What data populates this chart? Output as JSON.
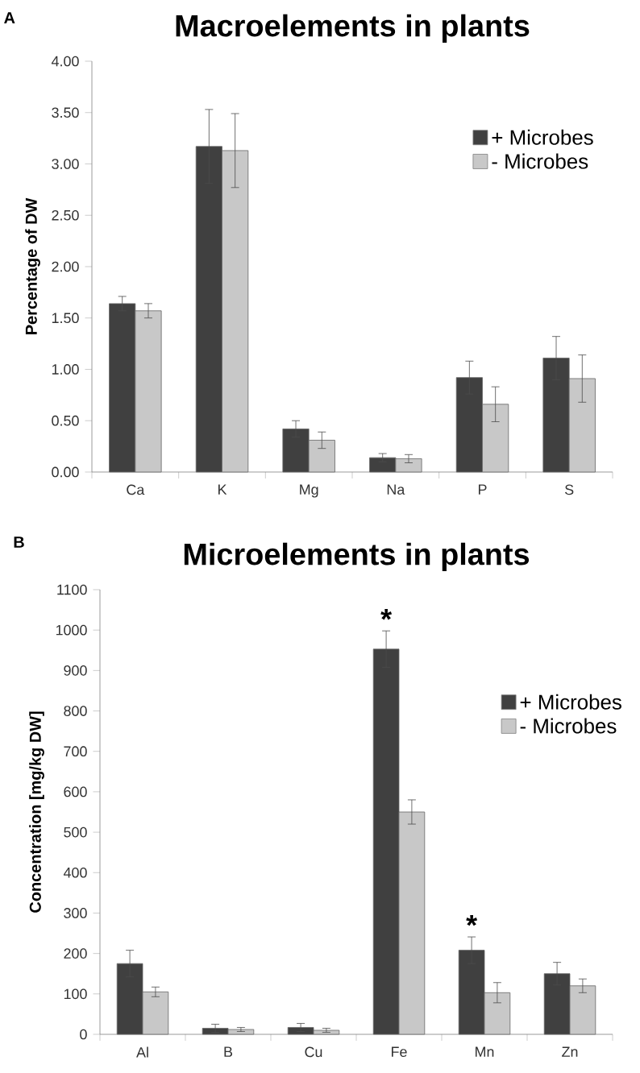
{
  "chart_data": [
    {
      "type": "bar",
      "title": "Macroelements in plants",
      "ylabel": "Percentage of DW",
      "categories": [
        "Ca",
        "K",
        "Mg",
        "Na",
        "P",
        "S"
      ],
      "series": [
        {
          "name": "+ Microbes",
          "color": "#404040",
          "values": [
            1.64,
            3.17,
            0.42,
            0.14,
            0.92,
            1.11
          ],
          "errors": [
            0.07,
            0.36,
            0.08,
            0.04,
            0.16,
            0.21
          ]
        },
        {
          "name": "- Microbes",
          "color": "#c8c8c8",
          "values": [
            1.57,
            3.13,
            0.31,
            0.13,
            0.66,
            0.91
          ],
          "errors": [
            0.07,
            0.36,
            0.08,
            0.04,
            0.17,
            0.23
          ]
        }
      ],
      "ylim": [
        0,
        4
      ],
      "yticks": [
        {
          "value": 0,
          "label": "0.00"
        },
        {
          "value": 0.5,
          "label": "0.50"
        },
        {
          "value": 1,
          "label": "1.00"
        },
        {
          "value": 1.5,
          "label": "1.50"
        },
        {
          "value": 2,
          "label": "2.00"
        },
        {
          "value": 2.5,
          "label": "2.50"
        },
        {
          "value": 3,
          "label": "3.00"
        },
        {
          "value": 3.5,
          "label": "3.50"
        },
        {
          "value": 4,
          "label": "4.00"
        }
      ],
      "legend": "top right",
      "annotations": [
        "A"
      ]
    },
    {
      "type": "bar",
      "title": "Microelements in plants",
      "ylabel": "Concentration [mg/kg DW]",
      "categories": [
        "Al",
        "B",
        "Cu",
        "Fe",
        "Mn",
        "Zn"
      ],
      "series": [
        {
          "name": "+ Microbes",
          "color": "#404040",
          "values": [
            175,
            15,
            17,
            953,
            208,
            150
          ],
          "errors": [
            33,
            10,
            10,
            45,
            33,
            28
          ]
        },
        {
          "name": "- Microbes",
          "color": "#c8c8c8",
          "values": [
            105,
            12,
            10,
            550,
            103,
            120
          ],
          "errors": [
            12,
            5,
            5,
            30,
            25,
            17
          ]
        }
      ],
      "ylim": [
        0,
        1100
      ],
      "yticks": [
        0,
        100,
        200,
        300,
        400,
        500,
        600,
        700,
        800,
        900,
        1000,
        1100
      ],
      "legend": "right",
      "annotations": [
        "B",
        {
          "text": "*",
          "x": "Fe",
          "y": 953
        },
        {
          "text": "*",
          "x": "Mn",
          "y": 208
        }
      ]
    }
  ]
}
